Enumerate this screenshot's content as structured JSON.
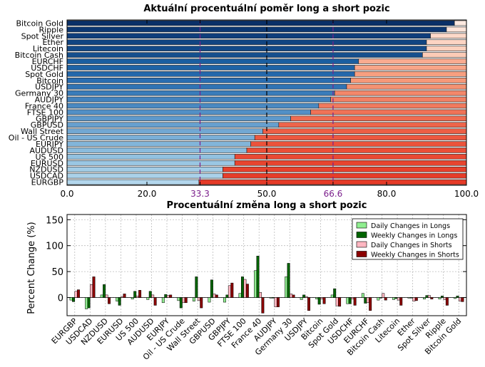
{
  "chart_data": [
    {
      "type": "bar",
      "orientation": "horizontal-stacked",
      "title": "Aktuální procentuální poměr long a short pozic",
      "xlim": [
        0,
        100
      ],
      "xticks": [
        "0.0",
        "20.0",
        "33.3",
        "50.0",
        "66.6",
        "80.0",
        "100.0"
      ],
      "reference_lines": [
        33.3,
        50.0,
        66.6
      ],
      "reference_colors": {
        "33.3": "#7b1f8c",
        "50.0": "#000000",
        "66.6": "#7b1f8c"
      },
      "categories": [
        "Bitcoin Gold",
        "Ripple",
        "Spot Silver",
        "Ether",
        "Litecoin",
        "Bitcoin Cash",
        "EURCHF",
        "USDCHF",
        "Spot Gold",
        "Bitcoin",
        "USDJPY",
        "Germany 30",
        "AUDJPY",
        "France 40",
        "FTSE 100",
        "GBPJPY",
        "GBPUSD",
        "Wall Street",
        "Oil - US Crude",
        "EURJPY",
        "AUDUSD",
        "US 500",
        "EURUSD",
        "NZDUSD",
        "USDCAD",
        "EURGBP"
      ],
      "long_pct": [
        97,
        95,
        91,
        90,
        90,
        89,
        73,
        72,
        72,
        71,
        70,
        67,
        66,
        63,
        61,
        56,
        53,
        49,
        47,
        46,
        45,
        42,
        42,
        39,
        39,
        33
      ],
      "long_colors": [
        "#0a3068",
        "#0c3772",
        "#0f3e7c",
        "#114582",
        "#134a88",
        "#154f8d",
        "#1a5ea0",
        "#1e63a6",
        "#2468ab",
        "#2a6db0",
        "#3073b4",
        "#3a7cba",
        "#4282be",
        "#4a89c2",
        "#5290c6",
        "#5e99cb",
        "#67a0cf",
        "#72a8d3",
        "#7aafd7",
        "#82b5da",
        "#8abbdd",
        "#92c1e0",
        "#9ac7e3",
        "#a2cce6",
        "#aad1e9",
        "#b2d6ec"
      ],
      "short_colors": [
        "#fde9e0",
        "#fde4d9",
        "#fcd8c8",
        "#fcd4c3",
        "#fcd0bd",
        "#fccbb6",
        "#f9ab90",
        "#f8a588",
        "#f79f80",
        "#f69878",
        "#f59272",
        "#f3876a",
        "#f28064",
        "#f17a5e",
        "#f07357",
        "#ef6b50",
        "#ee654b",
        "#ed5e45",
        "#ec5840",
        "#eb533b",
        "#ea4e37",
        "#e94933",
        "#e8452f",
        "#e7412c",
        "#e63d29",
        "#e53a27"
      ]
    },
    {
      "type": "bar",
      "title": "Procentuální změna long a short pozic",
      "ylabel": "Percent Change (%)",
      "ylim": [
        -35,
        160
      ],
      "yticks": [
        0,
        50,
        100,
        150
      ],
      "legend_position": "top-right",
      "categories": [
        "EURGBP",
        "USDCAD",
        "NZDUSD",
        "EURUSD",
        "US 500",
        "AUDUSD",
        "EURJPY",
        "Oil - US Crude",
        "Wall Street",
        "GBPUSD",
        "GBPJPY",
        "FTSE 100",
        "France 40",
        "AUDJPY",
        "Germany 30",
        "USDJPY",
        "Bitcoin",
        "Spot Gold",
        "USDCHF",
        "EURCHF",
        "Bitcoin Cash",
        "Litecoin",
        "Ether",
        "Spot Silver",
        "Ripple",
        "Bitcoin Gold"
      ],
      "series": [
        {
          "name": "Daily Changes in Longs",
          "color": "#90ee90",
          "values": [
            -5,
            -22,
            5,
            -7,
            -3,
            -4,
            -10,
            -6,
            -7,
            -9,
            -9,
            8,
            52,
            0,
            40,
            -4,
            -3,
            5,
            -12,
            8,
            -5,
            -4,
            0,
            -3,
            -3,
            -2
          ]
        },
        {
          "name": "Weekly Changes in Longs",
          "color": "#006400",
          "values": [
            -8,
            -20,
            25,
            -15,
            12,
            12,
            6,
            -20,
            40,
            34,
            5,
            40,
            80,
            0,
            66,
            5,
            -13,
            17,
            -12,
            -11,
            0,
            -2,
            0,
            4,
            3,
            3
          ]
        },
        {
          "name": "Daily Changes in Shorts",
          "color": "#ffb6c1",
          "values": [
            12,
            25,
            5,
            2,
            3,
            5,
            4,
            -10,
            -6,
            7,
            23,
            35,
            10,
            -18,
            7,
            2,
            -3,
            -16,
            -3,
            -10,
            8,
            -5,
            -7,
            4,
            -4,
            -7
          ]
        },
        {
          "name": "Weekly Changes in Shorts",
          "color": "#8b0000",
          "values": [
            15,
            40,
            -12,
            7,
            14,
            -15,
            5,
            -10,
            -20,
            5,
            28,
            26,
            -30,
            -18,
            5,
            -25,
            -12,
            -17,
            -15,
            -25,
            -5,
            -15,
            -6,
            -3,
            -15,
            -8
          ]
        }
      ]
    }
  ]
}
